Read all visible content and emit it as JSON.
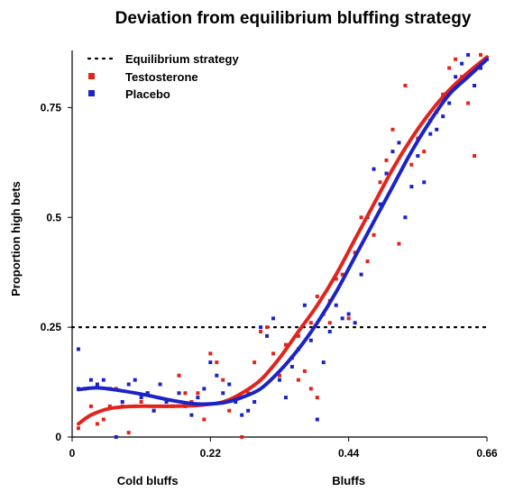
{
  "chart_data": {
    "type": "scatter",
    "title": "Deviation from equilibrium bluffing strategy",
    "xlabel": "",
    "ylabel": "Proportion high bets",
    "xlim": [
      0,
      0.66
    ],
    "ylim": [
      0,
      0.88
    ],
    "x_ticks": [
      {
        "v": 0,
        "label": "0"
      },
      {
        "v": 0.22,
        "label": "0.22"
      },
      {
        "v": 0.44,
        "label": "0.44"
      },
      {
        "v": 0.66,
        "label": "0.66"
      }
    ],
    "y_ticks": [
      {
        "v": 0,
        "label": "0"
      },
      {
        "v": 0.25,
        "label": "0.25"
      },
      {
        "v": 0.5,
        "label": "0.5"
      },
      {
        "v": 0.75,
        "label": "0.75"
      }
    ],
    "region_labels": [
      {
        "x": 0.12,
        "label": "Cold bluffs"
      },
      {
        "x": 0.44,
        "label": "Bluffs"
      }
    ],
    "legend": [
      {
        "name": "Equilibrium strategy",
        "style": "dotted",
        "color": "#000000"
      },
      {
        "name": "Testosterone",
        "style": "square",
        "color": "#e3231b"
      },
      {
        "name": "Placebo",
        "style": "square",
        "color": "#1a23c7"
      }
    ],
    "legend_position": "top-left",
    "equilibrium": {
      "y": 0.25,
      "x_range": [
        0,
        0.66
      ]
    },
    "series": [
      {
        "name": "Testosterone",
        "color": "#e3231b",
        "curve": [
          [
            0.01,
            0.03
          ],
          [
            0.03,
            0.05
          ],
          [
            0.06,
            0.065
          ],
          [
            0.1,
            0.07
          ],
          [
            0.15,
            0.07
          ],
          [
            0.2,
            0.072
          ],
          [
            0.24,
            0.08
          ],
          [
            0.27,
            0.1
          ],
          [
            0.3,
            0.13
          ],
          [
            0.33,
            0.18
          ],
          [
            0.36,
            0.24
          ],
          [
            0.39,
            0.3
          ],
          [
            0.42,
            0.37
          ],
          [
            0.45,
            0.45
          ],
          [
            0.48,
            0.53
          ],
          [
            0.51,
            0.61
          ],
          [
            0.54,
            0.68
          ],
          [
            0.57,
            0.74
          ],
          [
            0.6,
            0.79
          ],
          [
            0.63,
            0.83
          ],
          [
            0.66,
            0.865
          ]
        ],
        "points": [
          [
            0.01,
            0.02
          ],
          [
            0.02,
            0.11
          ],
          [
            0.03,
            0.07
          ],
          [
            0.04,
            0.03
          ],
          [
            0.05,
            0.04
          ],
          [
            0.06,
            0.07
          ],
          [
            0.07,
            0.11
          ],
          [
            0.08,
            0.07
          ],
          [
            0.09,
            0.01
          ],
          [
            0.1,
            0.07
          ],
          [
            0.11,
            0.08
          ],
          [
            0.12,
            0.1
          ],
          [
            0.13,
            0.06
          ],
          [
            0.15,
            0.07
          ],
          [
            0.17,
            0.14
          ],
          [
            0.18,
            0.1
          ],
          [
            0.19,
            0.08
          ],
          [
            0.2,
            0.1
          ],
          [
            0.21,
            0.04
          ],
          [
            0.22,
            0.19
          ],
          [
            0.23,
            0.17
          ],
          [
            0.24,
            0.13
          ],
          [
            0.25,
            0.06
          ],
          [
            0.26,
            0.09
          ],
          [
            0.27,
            0.0
          ],
          [
            0.28,
            0.1
          ],
          [
            0.29,
            0.17
          ],
          [
            0.3,
            0.24
          ],
          [
            0.31,
            0.25
          ],
          [
            0.32,
            0.19
          ],
          [
            0.33,
            0.14
          ],
          [
            0.34,
            0.21
          ],
          [
            0.35,
            0.18
          ],
          [
            0.36,
            0.23
          ],
          [
            0.37,
            0.15
          ],
          [
            0.38,
            0.26
          ],
          [
            0.39,
            0.32
          ],
          [
            0.4,
            0.28
          ],
          [
            0.41,
            0.31
          ],
          [
            0.42,
            0.36
          ],
          [
            0.43,
            0.37
          ],
          [
            0.44,
            0.27
          ],
          [
            0.45,
            0.42
          ],
          [
            0.46,
            0.5
          ],
          [
            0.47,
            0.4
          ],
          [
            0.48,
            0.46
          ],
          [
            0.49,
            0.58
          ],
          [
            0.5,
            0.63
          ],
          [
            0.51,
            0.7
          ],
          [
            0.52,
            0.44
          ],
          [
            0.53,
            0.8
          ],
          [
            0.54,
            0.62
          ],
          [
            0.55,
            0.68
          ],
          [
            0.56,
            0.65
          ],
          [
            0.57,
            0.72
          ],
          [
            0.58,
            0.74
          ],
          [
            0.59,
            0.78
          ],
          [
            0.6,
            0.84
          ],
          [
            0.61,
            0.86
          ],
          [
            0.62,
            0.82
          ],
          [
            0.63,
            0.76
          ],
          [
            0.64,
            0.64
          ],
          [
            0.65,
            0.87
          ],
          [
            0.39,
            0.09
          ],
          [
            0.38,
            0.11
          ],
          [
            0.41,
            0.26
          ],
          [
            0.36,
            0.13
          ]
        ]
      },
      {
        "name": "Placebo",
        "color": "#1a23c7",
        "curve": [
          [
            0.01,
            0.108
          ],
          [
            0.04,
            0.112
          ],
          [
            0.08,
            0.105
          ],
          [
            0.12,
            0.095
          ],
          [
            0.16,
            0.083
          ],
          [
            0.2,
            0.075
          ],
          [
            0.24,
            0.078
          ],
          [
            0.27,
            0.09
          ],
          [
            0.3,
            0.11
          ],
          [
            0.33,
            0.15
          ],
          [
            0.36,
            0.2
          ],
          [
            0.39,
            0.26
          ],
          [
            0.42,
            0.33
          ],
          [
            0.45,
            0.41
          ],
          [
            0.48,
            0.49
          ],
          [
            0.51,
            0.57
          ],
          [
            0.54,
            0.65
          ],
          [
            0.57,
            0.72
          ],
          [
            0.6,
            0.78
          ],
          [
            0.63,
            0.82
          ],
          [
            0.66,
            0.86
          ]
        ],
        "points": [
          [
            0.01,
            0.2
          ],
          [
            0.01,
            0.11
          ],
          [
            0.03,
            0.13
          ],
          [
            0.04,
            0.12
          ],
          [
            0.05,
            0.13
          ],
          [
            0.06,
            0.11
          ],
          [
            0.07,
            0.0
          ],
          [
            0.08,
            0.08
          ],
          [
            0.09,
            0.12
          ],
          [
            0.1,
            0.13
          ],
          [
            0.11,
            0.09
          ],
          [
            0.12,
            0.1
          ],
          [
            0.13,
            0.06
          ],
          [
            0.14,
            0.12
          ],
          [
            0.15,
            0.08
          ],
          [
            0.16,
            0.07
          ],
          [
            0.17,
            0.1
          ],
          [
            0.18,
            0.07
          ],
          [
            0.19,
            0.05
          ],
          [
            0.2,
            0.09
          ],
          [
            0.21,
            0.11
          ],
          [
            0.22,
            0.17
          ],
          [
            0.23,
            0.14
          ],
          [
            0.24,
            0.1
          ],
          [
            0.25,
            0.12
          ],
          [
            0.26,
            0.08
          ],
          [
            0.27,
            0.05
          ],
          [
            0.28,
            0.06
          ],
          [
            0.29,
            0.08
          ],
          [
            0.3,
            0.25
          ],
          [
            0.31,
            0.23
          ],
          [
            0.32,
            0.27
          ],
          [
            0.33,
            0.13
          ],
          [
            0.34,
            0.09
          ],
          [
            0.35,
            0.16
          ],
          [
            0.36,
            0.2
          ],
          [
            0.37,
            0.3
          ],
          [
            0.38,
            0.22
          ],
          [
            0.39,
            0.04
          ],
          [
            0.4,
            0.17
          ],
          [
            0.41,
            0.24
          ],
          [
            0.42,
            0.3
          ],
          [
            0.43,
            0.27
          ],
          [
            0.44,
            0.28
          ],
          [
            0.45,
            0.26
          ],
          [
            0.46,
            0.37
          ],
          [
            0.47,
            0.5
          ],
          [
            0.48,
            0.61
          ],
          [
            0.49,
            0.53
          ],
          [
            0.5,
            0.6
          ],
          [
            0.51,
            0.65
          ],
          [
            0.52,
            0.67
          ],
          [
            0.53,
            0.5
          ],
          [
            0.54,
            0.57
          ],
          [
            0.55,
            0.64
          ],
          [
            0.56,
            0.58
          ],
          [
            0.57,
            0.69
          ],
          [
            0.58,
            0.7
          ],
          [
            0.59,
            0.73
          ],
          [
            0.6,
            0.76
          ],
          [
            0.61,
            0.82
          ],
          [
            0.62,
            0.85
          ],
          [
            0.63,
            0.87
          ],
          [
            0.64,
            0.8
          ],
          [
            0.65,
            0.84
          ],
          [
            0.66,
            0.86
          ]
        ]
      }
    ]
  }
}
